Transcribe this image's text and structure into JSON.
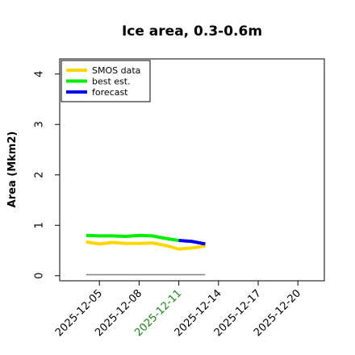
{
  "chart_data": {
    "type": "line",
    "title": "Ice area, 0.3-0.6m",
    "xlabel": "",
    "ylabel": "Area (Mkm2)",
    "xlim": [
      "2025-12-02",
      "2025-12-22"
    ],
    "ylim": [
      -0.1,
      4.3
    ],
    "yticks": [
      0,
      1,
      2,
      3,
      4
    ],
    "xticks": [
      "2025-12-05",
      "2025-12-08",
      "2025-12-11",
      "2025-12-14",
      "2025-12-17",
      "2025-12-20"
    ],
    "highlighted_xtick": "2025-12-11",
    "highlight_color": "#1a7f1a",
    "legend_position": "top-left",
    "series": [
      {
        "name": "SMOS data",
        "color": "#ffd700",
        "x": [
          "2025-12-04",
          "2025-12-05",
          "2025-12-06",
          "2025-12-07",
          "2025-12-08",
          "2025-12-09",
          "2025-12-10",
          "2025-12-11",
          "2025-12-12",
          "2025-12-13"
        ],
        "values": [
          0.67,
          0.63,
          0.66,
          0.64,
          0.64,
          0.65,
          0.6,
          0.53,
          0.55,
          0.59
        ]
      },
      {
        "name": "best est.",
        "color": "#00ee00",
        "x": [
          "2025-12-04",
          "2025-12-05",
          "2025-12-06",
          "2025-12-07",
          "2025-12-08",
          "2025-12-09",
          "2025-12-10",
          "2025-12-11"
        ],
        "values": [
          0.8,
          0.79,
          0.79,
          0.78,
          0.8,
          0.79,
          0.74,
          0.7
        ]
      },
      {
        "name": "forecast",
        "color": "#0000ee",
        "x": [
          "2025-12-11",
          "2025-12-12",
          "2025-12-13"
        ],
        "values": [
          0.7,
          0.68,
          0.63
        ]
      }
    ],
    "reference_line": {
      "color": "#808080",
      "x": [
        "2025-12-04",
        "2025-12-13"
      ],
      "values": [
        0.02,
        0.02
      ]
    }
  }
}
